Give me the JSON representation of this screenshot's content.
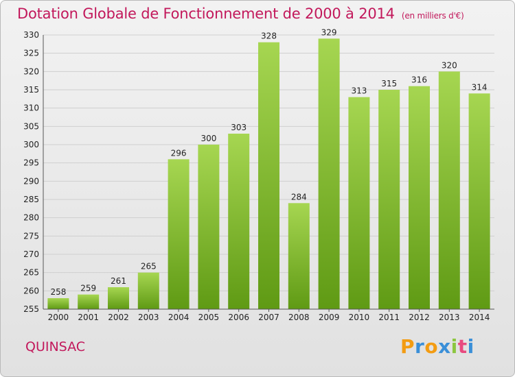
{
  "title": "Dotation Globale de Fonctionnement de 2000 à 2014",
  "unit": "(en milliers d'€)",
  "commune": "QUINSAC",
  "logo": {
    "letters": [
      "P",
      "r",
      "o",
      "x",
      "i",
      "t",
      "i"
    ],
    "colors": [
      "#f39c12",
      "#3a8fd8",
      "#f39c12",
      "#3a8fd8",
      "#8cc63f",
      "#e84a7f",
      "#3a8fd8"
    ]
  },
  "colors": {
    "bar_light": "#a6d651",
    "bar_dark": "#5f9a14",
    "grid": "#cfcfcf",
    "accent": "#c2185b"
  },
  "chart_data": {
    "type": "bar",
    "title": "Dotation Globale de Fonctionnement de 2000 à 2014",
    "xlabel": "",
    "ylabel": "",
    "categories": [
      "2000",
      "2001",
      "2002",
      "2003",
      "2004",
      "2005",
      "2006",
      "2007",
      "2008",
      "2009",
      "2010",
      "2011",
      "2012",
      "2013",
      "2014"
    ],
    "values": [
      258,
      259,
      261,
      265,
      296,
      300,
      303,
      328,
      284,
      329,
      313,
      315,
      316,
      320,
      314
    ],
    "ylim": [
      255,
      330
    ],
    "yticks": [
      255,
      260,
      265,
      270,
      275,
      280,
      285,
      290,
      295,
      300,
      305,
      310,
      315,
      320,
      325,
      330
    ],
    "grid": true,
    "legend": "none"
  }
}
